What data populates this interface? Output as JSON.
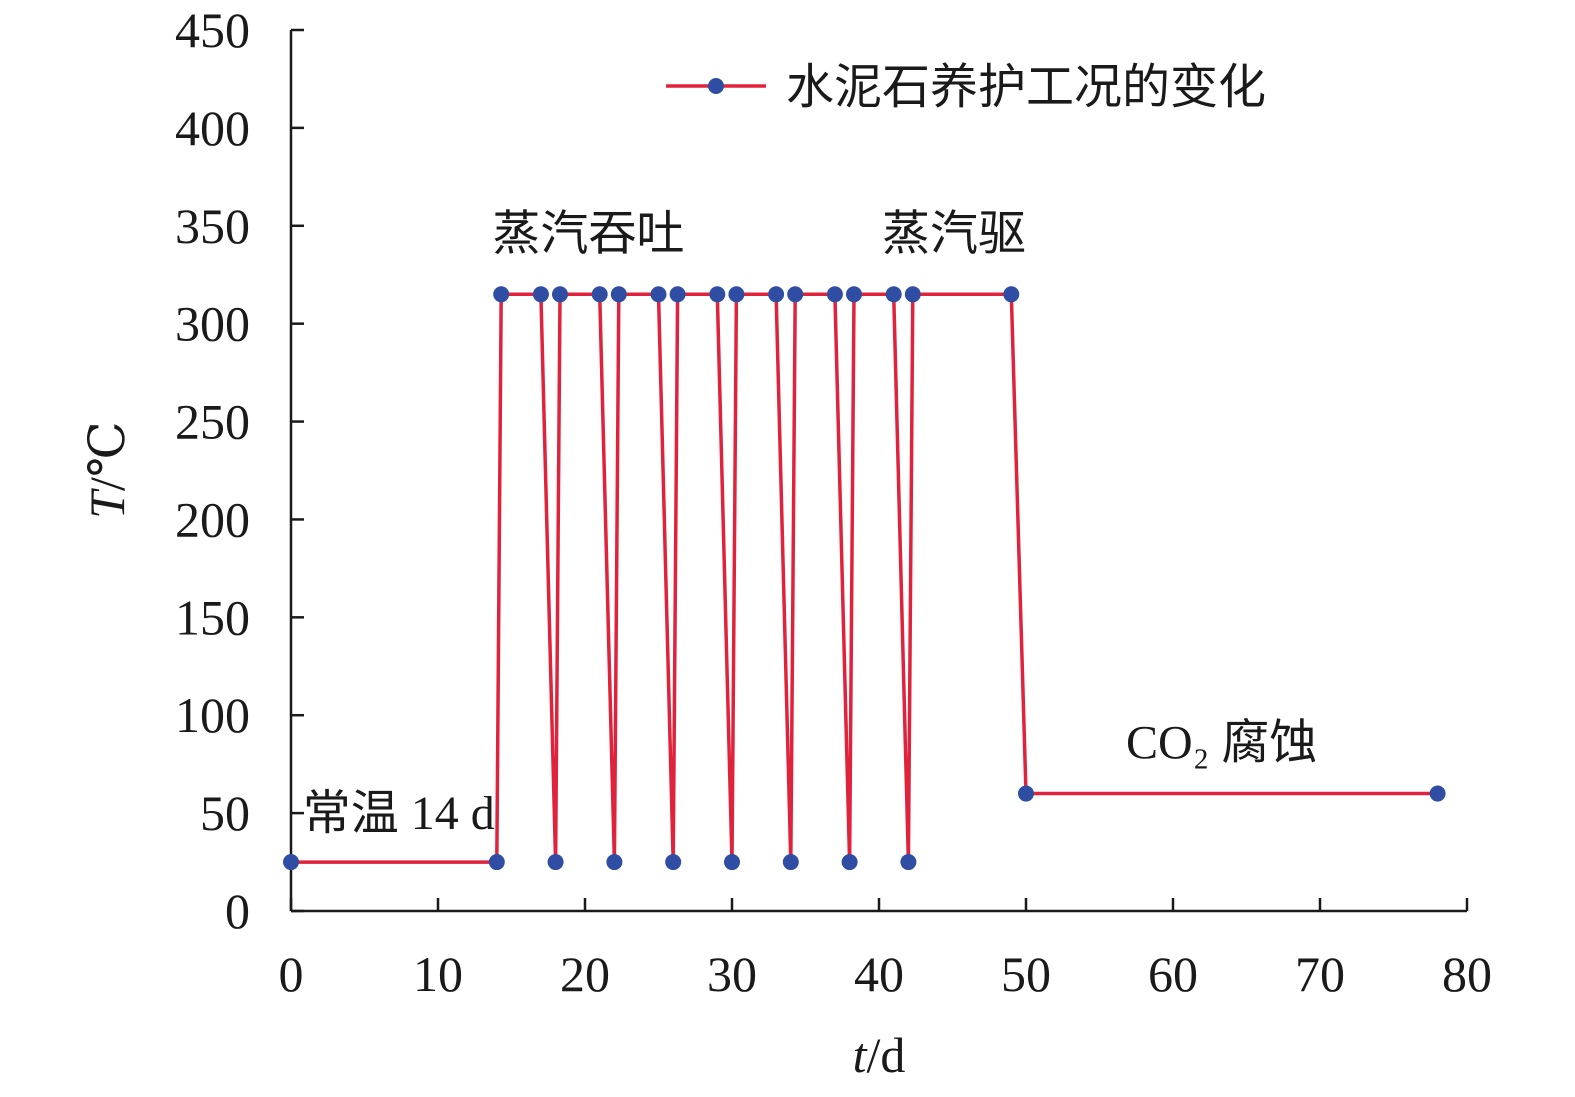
{
  "chart_data": {
    "type": "line",
    "xlabel": "t/d",
    "xlabel_parts": {
      "var": "t",
      "unit": "/d"
    },
    "ylabel": "T/℃",
    "ylabel_parts": {
      "var": "T",
      "unit": "/℃"
    },
    "xlim": [
      0,
      80
    ],
    "ylim": [
      0,
      450
    ],
    "xticks": [
      0,
      10,
      20,
      30,
      40,
      50,
      60,
      70,
      80
    ],
    "yticks": [
      0,
      50,
      100,
      150,
      200,
      250,
      300,
      350,
      400,
      450
    ],
    "grid": false,
    "legend_position": "top-right",
    "series": [
      {
        "name": "水泥石养护工况的变化",
        "color": "#e0233c",
        "marker_color": "#2f4ea3",
        "points": [
          {
            "x": 0,
            "y": 25
          },
          {
            "x": 14,
            "y": 25
          },
          {
            "x": 14.3,
            "y": 315
          },
          {
            "x": 17,
            "y": 315
          },
          {
            "x": 18,
            "y": 25
          },
          {
            "x": 18.3,
            "y": 315
          },
          {
            "x": 21,
            "y": 315
          },
          {
            "x": 22,
            "y": 25
          },
          {
            "x": 22.3,
            "y": 315
          },
          {
            "x": 25,
            "y": 315
          },
          {
            "x": 26,
            "y": 25
          },
          {
            "x": 26.3,
            "y": 315
          },
          {
            "x": 29,
            "y": 315
          },
          {
            "x": 30,
            "y": 25
          },
          {
            "x": 30.3,
            "y": 315
          },
          {
            "x": 33,
            "y": 315
          },
          {
            "x": 34,
            "y": 25
          },
          {
            "x": 34.3,
            "y": 315
          },
          {
            "x": 37,
            "y": 315
          },
          {
            "x": 38,
            "y": 25
          },
          {
            "x": 38.3,
            "y": 315
          },
          {
            "x": 41,
            "y": 315
          },
          {
            "x": 42,
            "y": 25
          },
          {
            "x": 42.3,
            "y": 315
          },
          {
            "x": 49,
            "y": 315
          },
          {
            "x": 50,
            "y": 60
          },
          {
            "x": 78,
            "y": 60
          }
        ]
      }
    ],
    "annotations": [
      {
        "text": "常温 14 d",
        "x": 0.8,
        "y": 42
      },
      {
        "text": "蒸汽吞吐",
        "x": 13.7,
        "y": 338
      },
      {
        "text": "蒸汽驱",
        "x": 40.2,
        "y": 338
      },
      {
        "text": "CO₂ 腐蚀",
        "x": 56.8,
        "y": 78
      }
    ]
  }
}
